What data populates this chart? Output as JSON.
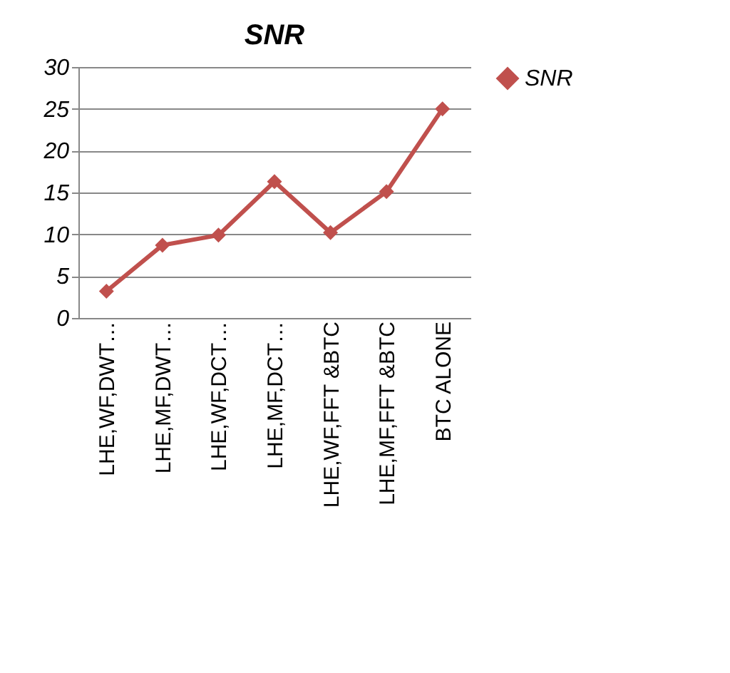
{
  "chart_data": {
    "type": "line",
    "title": "SNR",
    "categories": [
      "LHE,WF,DWT…",
      "LHE,MF,DWT…",
      "LHE,WF,DCT…",
      "LHE,MF,DCT…",
      "LHE,WF,FFT &BTC",
      "LHE,MF,FFT &BTC",
      "BTC ALONE"
    ],
    "series": [
      {
        "name": "SNR",
        "color": "#c0504d",
        "values": [
          3.2,
          8.7,
          9.9,
          16.3,
          10.2,
          15.1,
          25.0
        ]
      }
    ],
    "ylim": [
      0,
      30
    ],
    "yticks": [
      0,
      5,
      10,
      15,
      20,
      25,
      30
    ],
    "grid": "y",
    "legend": "right",
    "marker": "diamond",
    "line_style": "solid"
  }
}
